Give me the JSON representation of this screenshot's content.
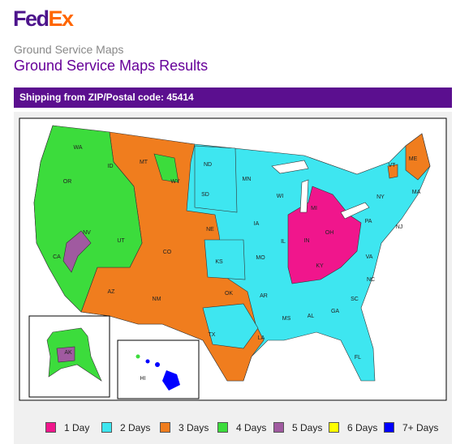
{
  "header": {
    "logo_fed": "Fed",
    "logo_ex": "Ex",
    "breadcrumb": "Ground Service Maps",
    "title": "Ground Service Maps Results"
  },
  "banner": "Shipping from ZIP/Postal code: 45414",
  "map": {
    "labels": [
      "WA",
      "OR",
      "ID",
      "MT",
      "ND",
      "MN",
      "WI",
      "MI",
      "NY",
      "VT",
      "ME",
      "MA",
      "NJ",
      "PA",
      "OH",
      "IN",
      "IL",
      "IA",
      "SD",
      "WY",
      "NE",
      "NV",
      "UT",
      "CA",
      "CO",
      "KS",
      "MO",
      "KY",
      "VA",
      "NC",
      "AR",
      "OK",
      "AZ",
      "NM",
      "TX",
      "LA",
      "MS",
      "AL",
      "GA",
      "SC",
      "FL",
      "AK",
      "HI"
    ]
  },
  "legend": [
    {
      "label": "1 Day",
      "color": "#f0168c"
    },
    {
      "label": "2 Days",
      "color": "#3ee6f0"
    },
    {
      "label": "3 Days",
      "color": "#f07d1e"
    },
    {
      "label": "4 Days",
      "color": "#3cdc3c"
    },
    {
      "label": "5 Days",
      "color": "#a05aa0"
    },
    {
      "label": "6 Days",
      "color": "#ffff00"
    },
    {
      "label": "7+ Days",
      "color": "#0000ff"
    }
  ]
}
